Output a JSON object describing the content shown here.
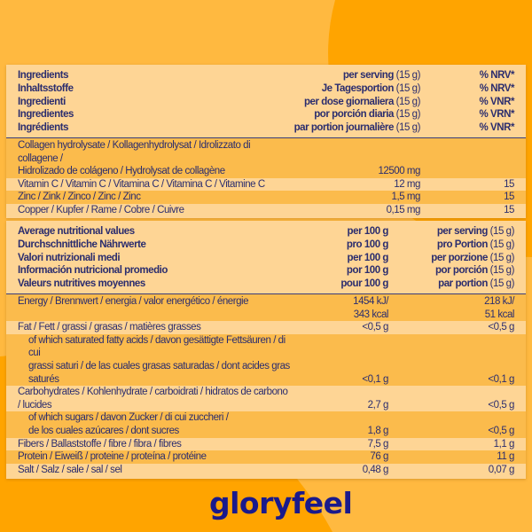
{
  "colors": {
    "bg_light": "#ffb940",
    "bg_dark": "#ffa400",
    "table_light": "#fed595",
    "table_dark": "#fbbb4c",
    "text": "#2b2d6e",
    "logo": "#1a1a8c"
  },
  "ingredients_table": {
    "header": [
      {
        "c1": "Ingredients",
        "c2": "per serving",
        "c2u": " (15 g)",
        "c3": "% NRV*"
      },
      {
        "c1": "Inhaltsstoffe",
        "c2": "Je Tagesportion",
        "c2u": " (15 g)",
        "c3": "% NRV*"
      },
      {
        "c1": "Ingredienti",
        "c2": "per dose giornaliera",
        "c2u": " (15 g)",
        "c3": "% VNR*"
      },
      {
        "c1": "Ingredientes",
        "c2": "por porción diaria",
        "c2u": " (15 g)",
        "c3": "% VRN*"
      },
      {
        "c1": "Ingrédients",
        "c2": "par portion journalière",
        "c2u": " (15 g)",
        "c3": "% VNR*"
      }
    ],
    "rows": [
      {
        "l1": "Collagen hydrolysate / Kollagenhydrolysat / Idrolizzato di collagene /",
        "l2": "Hidrolizado de colágeno / Hydrolysat de collagène",
        "c2": "12500 mg",
        "c3": ""
      },
      {
        "l1": "Vitamin C / Vitamin C / Vitamina C / Vitamina C / Vitamine C",
        "c2": "12 mg",
        "c3": "15"
      },
      {
        "l1": "Zinc / Zink / Zinco / Zinc / Zinc",
        "c2": "1,5 mg",
        "c3": "15"
      },
      {
        "l1": "Copper / Kupfer / Rame / Cobre / Cuivre",
        "c2": "0,15 mg",
        "c3": "15"
      }
    ]
  },
  "nutrition_table": {
    "header": [
      {
        "c1": "Average nutritional values",
        "c2": "per 100 g",
        "c3": "per serving",
        "c3u": " (15 g)"
      },
      {
        "c1": "Durchschnittliche Nährwerte",
        "c2": "pro 100 g",
        "c3": "pro Portion",
        "c3u": " (15 g)"
      },
      {
        "c1": "Valori nutrizionali medi",
        "c2": "per 100 g",
        "c3": "per porzione",
        "c3u": " (15 g)"
      },
      {
        "c1": "Información nutricional promedio",
        "c2": "por 100 g",
        "c3": "por porción",
        "c3u": " (15 g)"
      },
      {
        "c1": "Valeurs nutritives moyennes",
        "c2": "pour 100 g",
        "c3": "par portion",
        "c3u": " (15 g)"
      }
    ],
    "rows": [
      {
        "l1": "Energy / Brennwert / energia / valor energético / énergie",
        "c2a": "1454 kJ/",
        "c2": "343 kcal",
        "c3a": "218 kJ/",
        "c3": "51 kcal"
      },
      {
        "l1": "Fat / Fett / grassi / grasas / matières grasses",
        "c2": "<0,5 g",
        "c3": "<0,5 g"
      },
      {
        "l1": "of which saturated fatty acids / davon gesättigte Fettsäuren / di cui",
        "l2": "grassi saturi / de las cuales grasas saturadas / dont acides gras saturés",
        "c2": "<0,1 g",
        "c3": "<0,1 g"
      },
      {
        "l1": "Carbohydrates / Kohlenhydrate / carboidrati / hidratos de carbono / lucides",
        "c2": "2,7 g",
        "c3": "<0,5 g"
      },
      {
        "l1": "of which sugars / davon Zucker / di cui zuccheri /",
        "l2": "de los cuales azúcares / dont sucres",
        "c2": "1,8 g",
        "c3": "<0,5 g"
      },
      {
        "l1": "Fibers / Ballaststoffe / fibre / fibra / fibres",
        "c2": "7,5 g",
        "c3": "1,1 g"
      },
      {
        "l1": "Protein / Eiweiß / proteine / proteína / protéine",
        "c2": "76 g",
        "c3": "11 g"
      },
      {
        "l1": "Salt / Salz / sale / sal / sel",
        "c2": "0,48 g",
        "c3": "0,07 g"
      }
    ]
  },
  "brand": {
    "logo": "gloryfeel"
  }
}
